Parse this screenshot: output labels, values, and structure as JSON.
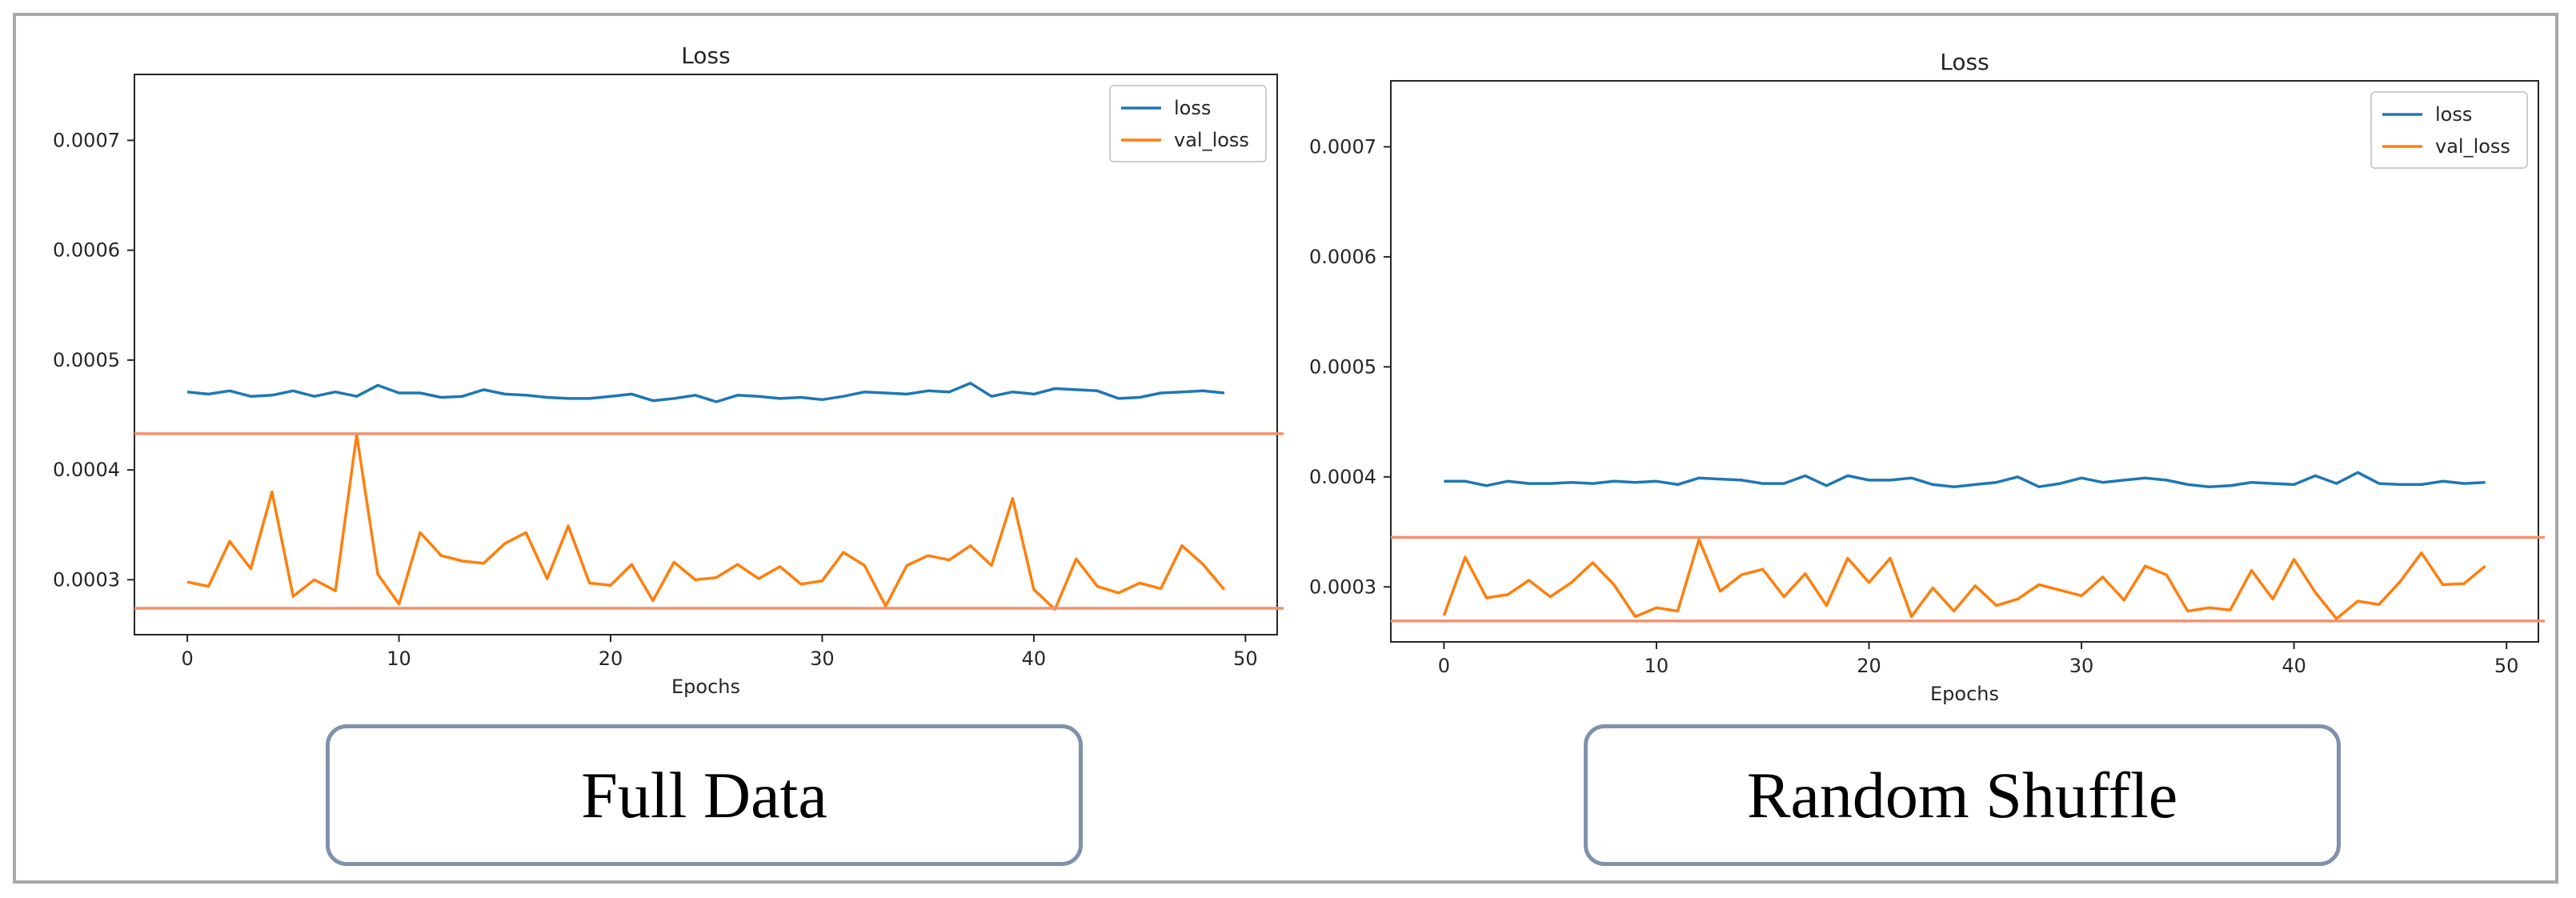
{
  "captions": [
    "Full Data",
    "Random Shuffle"
  ],
  "chart_data": [
    {
      "type": "line",
      "title": "Loss",
      "xlabel": "Epochs",
      "ylabel": "",
      "xlim": [
        -2.5,
        51.5
      ],
      "ylim": [
        0.00025,
        0.00076
      ],
      "xticks": [
        0,
        10,
        20,
        30,
        40,
        50
      ],
      "yticks": [
        0.0003,
        0.0004,
        0.0005,
        0.0006,
        0.0007
      ],
      "ytick_labels": [
        "0.0003",
        "0.0004",
        "0.0005",
        "0.0006",
        "0.0007"
      ],
      "legend_position": "top-right",
      "x": [
        0,
        1,
        2,
        3,
        4,
        5,
        6,
        7,
        8,
        9,
        10,
        11,
        12,
        13,
        14,
        15,
        16,
        17,
        18,
        19,
        20,
        21,
        22,
        23,
        24,
        25,
        26,
        27,
        28,
        29,
        30,
        31,
        32,
        33,
        34,
        35,
        36,
        37,
        38,
        39,
        40,
        41,
        42,
        43,
        44,
        45,
        46,
        47,
        48,
        49
      ],
      "series": [
        {
          "name": "loss",
          "color": "#1f77b4",
          "values": [
            0.000471,
            0.000469,
            0.000472,
            0.000467,
            0.000468,
            0.000472,
            0.000467,
            0.000471,
            0.000467,
            0.000477,
            0.00047,
            0.00047,
            0.000466,
            0.000467,
            0.000473,
            0.000469,
            0.000468,
            0.000466,
            0.000465,
            0.000465,
            0.000467,
            0.000469,
            0.000463,
            0.000465,
            0.000468,
            0.000462,
            0.000468,
            0.000467,
            0.000465,
            0.000466,
            0.000464,
            0.000467,
            0.000471,
            0.00047,
            0.000469,
            0.000472,
            0.000471,
            0.000479,
            0.000467,
            0.000471,
            0.000469,
            0.000474,
            0.000473,
            0.000472,
            0.000465,
            0.000466,
            0.00047,
            0.000471,
            0.000472,
            0.00047
          ]
        },
        {
          "name": "val_loss",
          "color": "#ff7f0e",
          "values": [
            0.000298,
            0.000294,
            0.000335,
            0.00031,
            0.00038,
            0.000285,
            0.0003,
            0.00029,
            0.000432,
            0.000305,
            0.000278,
            0.000343,
            0.000322,
            0.000317,
            0.000315,
            0.000333,
            0.000343,
            0.000301,
            0.000349,
            0.000297,
            0.000295,
            0.000314,
            0.000281,
            0.000316,
            0.0003,
            0.000302,
            0.000314,
            0.000301,
            0.000312,
            0.000296,
            0.000299,
            0.000325,
            0.000313,
            0.000276,
            0.000313,
            0.000322,
            0.000318,
            0.000331,
            0.000313,
            0.000374,
            0.000291,
            0.000273,
            0.000319,
            0.000294,
            0.000288,
            0.000297,
            0.000292,
            0.000331,
            0.000314,
            0.000291
          ]
        }
      ],
      "reference_lines": [
        0.000433,
        0.000274
      ]
    },
    {
      "type": "line",
      "title": "Loss",
      "xlabel": "Epochs",
      "ylabel": "",
      "xlim": [
        -2.5,
        51.5
      ],
      "ylim": [
        0.00025,
        0.00076
      ],
      "xticks": [
        0,
        10,
        20,
        30,
        40,
        50
      ],
      "yticks": [
        0.0003,
        0.0004,
        0.0005,
        0.0006,
        0.0007
      ],
      "ytick_labels": [
        "0.0003",
        "0.0004",
        "0.0005",
        "0.0006",
        "0.0007"
      ],
      "legend_position": "top-right",
      "x": [
        0,
        1,
        2,
        3,
        4,
        5,
        6,
        7,
        8,
        9,
        10,
        11,
        12,
        13,
        14,
        15,
        16,
        17,
        18,
        19,
        20,
        21,
        22,
        23,
        24,
        25,
        26,
        27,
        28,
        29,
        30,
        31,
        32,
        33,
        34,
        35,
        36,
        37,
        38,
        39,
        40,
        41,
        42,
        43,
        44,
        45,
        46,
        47,
        48,
        49
      ],
      "series": [
        {
          "name": "loss",
          "color": "#1f77b4",
          "values": [
            0.000396,
            0.000396,
            0.000392,
            0.000396,
            0.000394,
            0.000394,
            0.000395,
            0.000394,
            0.000396,
            0.000395,
            0.000396,
            0.000393,
            0.000399,
            0.000398,
            0.000397,
            0.000394,
            0.000394,
            0.000401,
            0.000392,
            0.000401,
            0.000397,
            0.000397,
            0.000399,
            0.000393,
            0.000391,
            0.000393,
            0.000395,
            0.0004,
            0.000391,
            0.000394,
            0.000399,
            0.000395,
            0.000397,
            0.000399,
            0.000397,
            0.000393,
            0.000391,
            0.000392,
            0.000395,
            0.000394,
            0.000393,
            0.000401,
            0.000394,
            0.000404,
            0.000394,
            0.000393,
            0.000393,
            0.000396,
            0.000394,
            0.000395
          ]
        },
        {
          "name": "val_loss",
          "color": "#ff7f0e",
          "values": [
            0.000274,
            0.000327,
            0.00029,
            0.000293,
            0.000306,
            0.000291,
            0.000304,
            0.000322,
            0.000302,
            0.000273,
            0.000281,
            0.000278,
            0.000343,
            0.000296,
            0.000311,
            0.000316,
            0.000291,
            0.000312,
            0.000283,
            0.000326,
            0.000304,
            0.000326,
            0.000273,
            0.000299,
            0.000278,
            0.000301,
            0.000283,
            0.000289,
            0.000302,
            0.000297,
            0.000292,
            0.000309,
            0.000288,
            0.000319,
            0.000311,
            0.000278,
            0.000281,
            0.000279,
            0.000315,
            0.000289,
            0.000325,
            0.000295,
            0.000271,
            0.000287,
            0.000284,
            0.000305,
            0.000331,
            0.000302,
            0.000303,
            0.000319
          ]
        }
      ],
      "reference_lines": [
        0.000345,
        0.000269
      ]
    }
  ]
}
